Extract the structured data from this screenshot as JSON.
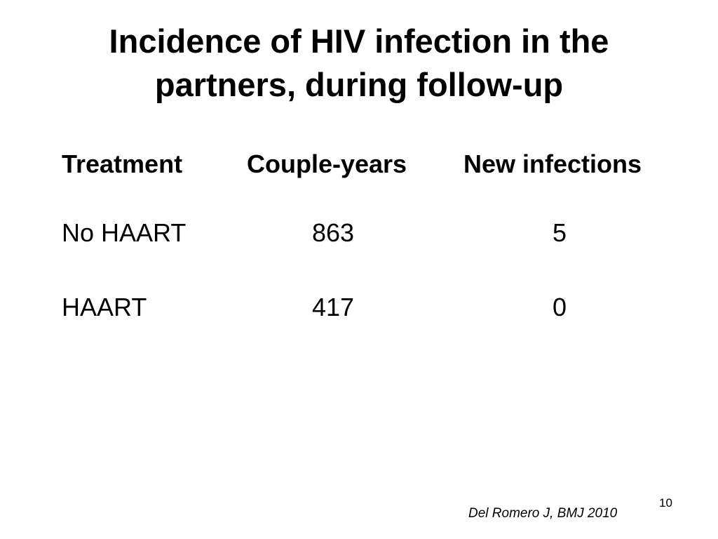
{
  "title": {
    "line1": "Incidence of HIV infection in the",
    "line2": "partners, during follow-up"
  },
  "table": {
    "headers": [
      "Treatment",
      "Couple-years",
      "New infections"
    ],
    "rows": [
      [
        "No HAART",
        "863",
        "5"
      ],
      [
        "HAART",
        "417",
        "0"
      ]
    ]
  },
  "citation": "Del Romero J, BMJ 2010",
  "page_number": "10"
}
